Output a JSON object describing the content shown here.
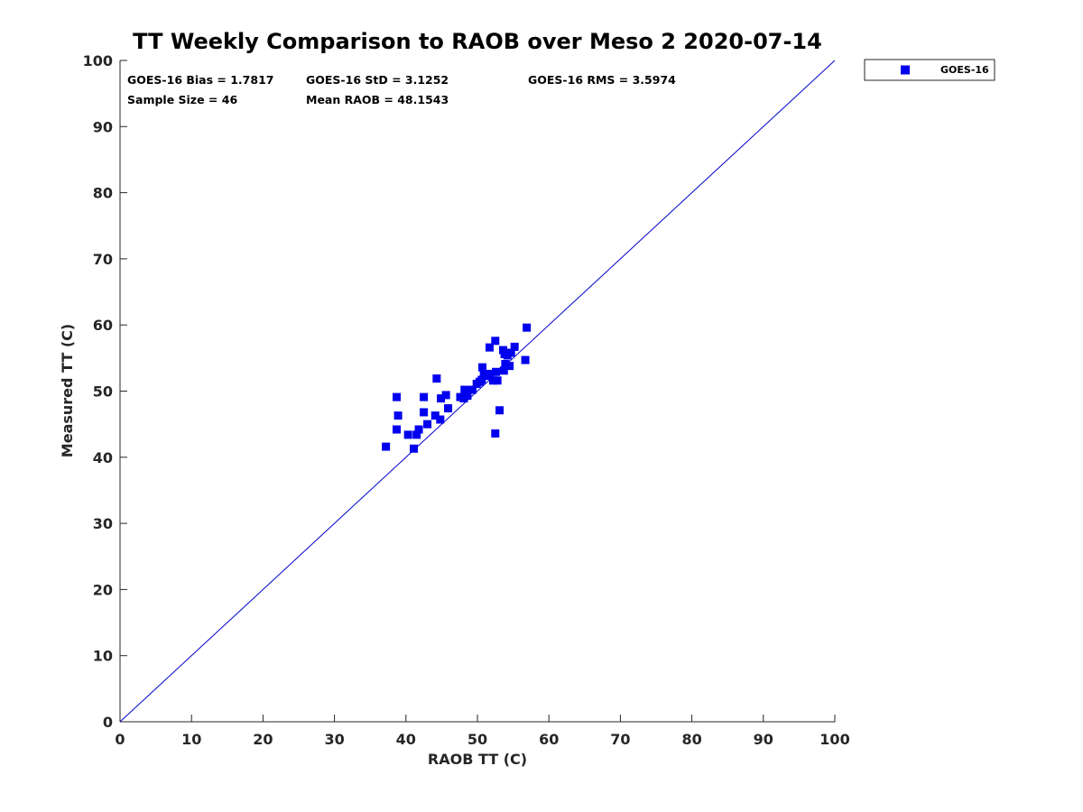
{
  "chart_data": {
    "type": "scatter",
    "title": "TT Weekly Comparison to RAOB over Meso 2 2020-07-14",
    "xlabel": "RAOB TT (C)",
    "ylabel": "Measured TT (C)",
    "xlim": [
      0,
      100
    ],
    "ylim": [
      0,
      100
    ],
    "xticks": [
      "0",
      "10",
      "20",
      "30",
      "40",
      "50",
      "60",
      "70",
      "80",
      "90",
      "100"
    ],
    "yticks": [
      "0",
      "10",
      "20",
      "30",
      "40",
      "50",
      "60",
      "70",
      "80",
      "90",
      "100"
    ],
    "reference_line": {
      "x": [
        0,
        100
      ],
      "y": [
        0,
        100
      ],
      "color": "#0000cc"
    },
    "legend_position": "outside-top-right",
    "stats": {
      "bias": "GOES-16 Bias = 1.7817",
      "std": "GOES-16 StD = 3.1252",
      "rms": "GOES-16 RMS = 3.5974",
      "sample_size": "Sample Size = 46",
      "mean_raob": "Mean RAOB = 48.1543"
    },
    "series": [
      {
        "name": "GOES-16",
        "color": "#0000ee",
        "marker": "square",
        "points": [
          [
            37.2,
            41.6
          ],
          [
            38.7,
            49.1
          ],
          [
            38.7,
            44.2
          ],
          [
            38.9,
            46.3
          ],
          [
            40.3,
            43.4
          ],
          [
            41.1,
            41.3
          ],
          [
            41.5,
            43.4
          ],
          [
            41.8,
            44.2
          ],
          [
            42.5,
            49.1
          ],
          [
            42.5,
            46.8
          ],
          [
            43.0,
            45.0
          ],
          [
            44.1,
            46.3
          ],
          [
            44.3,
            51.9
          ],
          [
            44.8,
            45.7
          ],
          [
            44.9,
            48.9
          ],
          [
            45.6,
            49.4
          ],
          [
            45.9,
            47.4
          ],
          [
            47.6,
            49.1
          ],
          [
            48.1,
            48.9
          ],
          [
            48.2,
            50.2
          ],
          [
            49.3,
            50.2
          ],
          [
            49.9,
            51.1
          ],
          [
            50.6,
            51.7
          ],
          [
            50.7,
            53.6
          ],
          [
            50.9,
            52.6
          ],
          [
            51.6,
            52.6
          ],
          [
            51.7,
            56.6
          ],
          [
            52.2,
            51.6
          ],
          [
            52.5,
            57.6
          ],
          [
            52.5,
            43.6
          ],
          [
            52.6,
            52.9
          ],
          [
            52.8,
            51.6
          ],
          [
            53.1,
            47.1
          ],
          [
            53.6,
            56.2
          ],
          [
            53.7,
            53.1
          ],
          [
            53.8,
            55.6
          ],
          [
            53.9,
            54.1
          ],
          [
            54.5,
            53.8
          ],
          [
            54.7,
            55.8
          ],
          [
            55.2,
            56.7
          ],
          [
            56.7,
            54.7
          ],
          [
            56.9,
            59.6
          ],
          [
            54.2,
            55.4
          ],
          [
            51.2,
            52.3
          ],
          [
            50.3,
            51.4
          ],
          [
            48.6,
            49.3
          ]
        ]
      }
    ]
  }
}
